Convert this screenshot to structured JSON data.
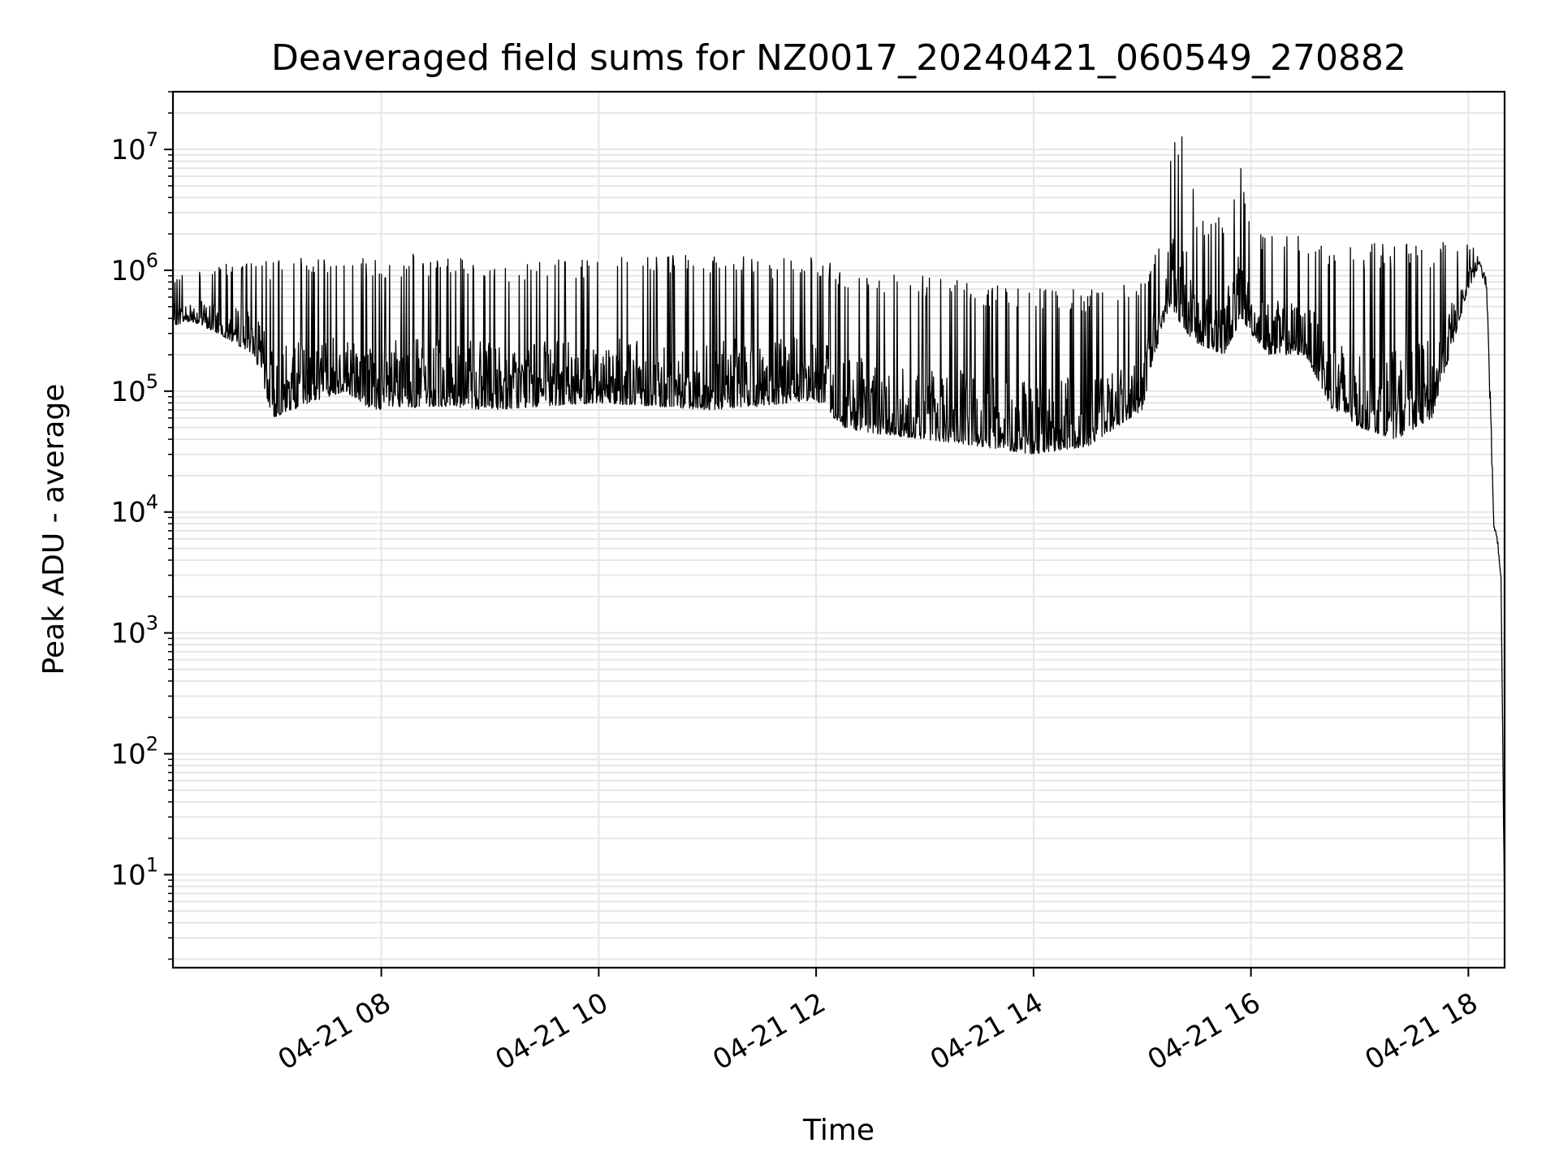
{
  "chart_data": {
    "type": "line",
    "title": "Deaveraged field sums for NZ0017_20240421_060549_270882",
    "xlabel": "Time",
    "ylabel": "Peak ADU - average",
    "yscale": "log",
    "grid": true,
    "grid_color": "#e6e6e6",
    "line_color": "#000000",
    "x_range": [
      "04-21 06:05",
      "04-21 18:20"
    ],
    "ylim": [
      1.7,
      30000000
    ],
    "xticks": [
      {
        "label": "04-21 08",
        "hour": 8
      },
      {
        "label": "04-21 10",
        "hour": 10
      },
      {
        "label": "04-21 12",
        "hour": 12
      },
      {
        "label": "04-21 14",
        "hour": 14
      },
      {
        "label": "04-21 16",
        "hour": 16
      },
      {
        "label": "04-21 18",
        "hour": 18
      }
    ],
    "yticks": [
      {
        "base": "10",
        "exp": "1",
        "value": 10
      },
      {
        "base": "10",
        "exp": "2",
        "value": 100
      },
      {
        "base": "10",
        "exp": "3",
        "value": 1000
      },
      {
        "base": "10",
        "exp": "4",
        "value": 10000
      },
      {
        "base": "10",
        "exp": "5",
        "value": 100000
      },
      {
        "base": "10",
        "exp": "6",
        "value": 1000000
      },
      {
        "base": "10",
        "exp": "7",
        "value": 10000000
      }
    ],
    "series": [
      {
        "x": [
          "04-21 06:05",
          "04-21 06:15",
          "04-21 06:30",
          "04-21 06:50",
          "04-21 07:00",
          "04-21 07:20",
          "04-21 07:40",
          "04-21 07:55",
          "04-21 08:30",
          "04-21 09:00",
          "04-21 09:30",
          "04-21 10:00",
          "04-21 10:30",
          "04-21 11:00",
          "04-21 11:30",
          "04-21 12:00",
          "04-21 12:15",
          "04-21 12:30",
          "04-21 13:00",
          "04-21 13:30",
          "04-21 14:00",
          "04-21 14:30",
          "04-21 15:00",
          "04-21 15:10",
          "04-21 15:15",
          "04-21 15:25",
          "04-21 15:30",
          "04-21 15:45",
          "04-21 15:55",
          "04-21 16:00",
          "04-21 16:10",
          "04-21 16:30",
          "04-21 16:45",
          "04-21 17:00",
          "04-21 17:20",
          "04-21 17:40",
          "04-21 18:00",
          "04-21 18:05",
          "04-21 18:10",
          "04-21 18:12",
          "04-21 18:14",
          "04-21 18:16",
          "04-21 18:18",
          "04-21 18:19",
          "04-21 18:20"
        ],
        "lower": [
          350000,
          380000,
          300000,
          200000,
          60000,
          80000,
          100000,
          70000,
          75000,
          70000,
          75000,
          80000,
          75000,
          70000,
          75000,
          85000,
          50000,
          45000,
          40000,
          35000,
          30000,
          35000,
          70000,
          300000,
          500000,
          300000,
          250000,
          200000,
          400000,
          300000,
          200000,
          200000,
          70000,
          50000,
          40000,
          60000,
          700000,
          1000000,
          600000,
          40000,
          7000,
          5000,
          2500,
          80,
          4
        ],
        "upper": [
          900000,
          1000000,
          1100000,
          1200000,
          1200000,
          1300000,
          1300000,
          1300000,
          1400000,
          1200000,
          1200000,
          1300000,
          1400000,
          1400000,
          1300000,
          1300000,
          1100000,
          1000000,
          900000,
          800000,
          700000,
          700000,
          800000,
          2000000,
          12000000,
          14000000,
          2500000,
          3000000,
          8000000,
          2000000,
          2000000,
          2000000,
          1600000,
          1700000,
          1700000,
          1700000,
          1700000,
          1500000,
          1000000,
          200000,
          9000,
          7000,
          3500,
          150,
          5
        ]
      }
    ]
  }
}
